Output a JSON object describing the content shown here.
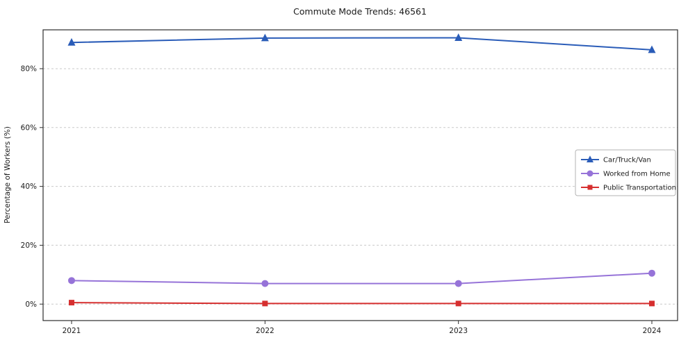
{
  "chart_data": {
    "type": "line",
    "title": "Commute Mode Trends: 46561",
    "xlabel": "",
    "ylabel": "Percentage of Workers (%)",
    "categories": [
      "2021",
      "2022",
      "2023",
      "2024"
    ],
    "series": [
      {
        "name": "Car/Truck/Van",
        "values": [
          88.9,
          90.4,
          90.5,
          86.4
        ],
        "color": "#2a5cb8",
        "marker": "triangle"
      },
      {
        "name": "Worked from Home",
        "values": [
          8.0,
          7.0,
          7.0,
          10.5
        ],
        "color": "#9673d8",
        "marker": "circle"
      },
      {
        "name": "Public Transportation",
        "values": [
          0.5,
          0.2,
          0.2,
          0.2
        ],
        "color": "#d62f2f",
        "marker": "square"
      }
    ],
    "yticks": [
      {
        "value": 0,
        "label": "0%"
      },
      {
        "value": 20,
        "label": "20%"
      },
      {
        "value": 40,
        "label": "40%"
      },
      {
        "value": 60,
        "label": "60%"
      },
      {
        "value": 80,
        "label": "80%"
      }
    ],
    "ylim": [
      -5.6,
      93.2
    ],
    "grid": "horizontal-dashed",
    "legend_position": "center-right"
  }
}
